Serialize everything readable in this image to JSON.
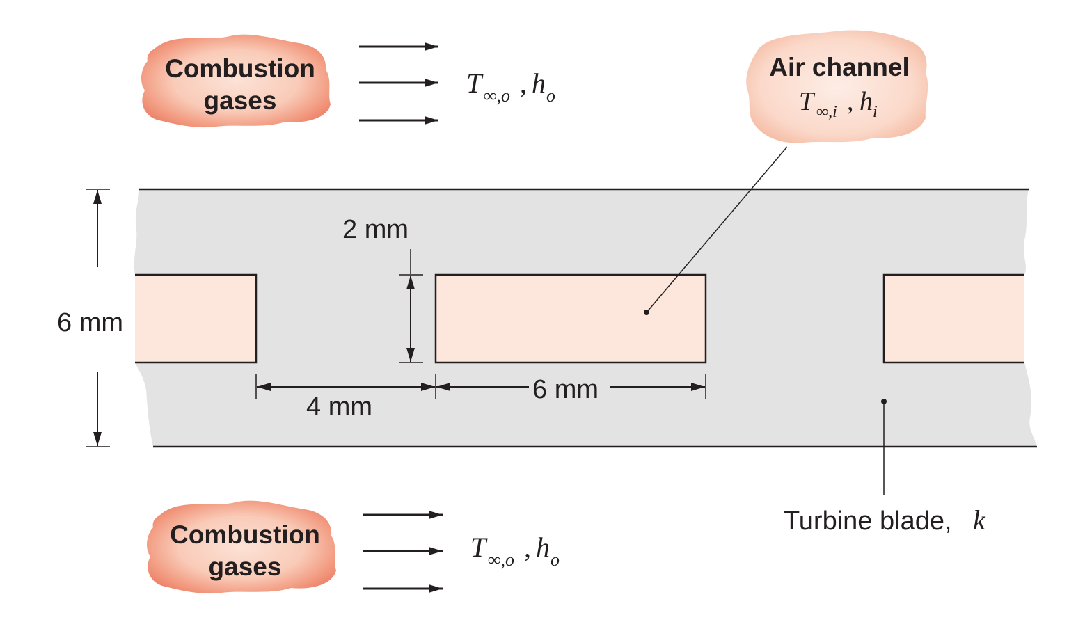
{
  "clouds": {
    "top": {
      "line1": "Combustion",
      "line2": "gases"
    },
    "bottom": {
      "line1": "Combustion",
      "line2": "gases"
    },
    "air": {
      "title": "Air channel"
    }
  },
  "symbols": {
    "T": "T",
    "inf_o": "∞,o",
    "inf_i": "∞,i",
    "h": "h",
    "sub_o": "o",
    "sub_i": "i",
    "comma": ","
  },
  "dimensions": {
    "height_total": "6 mm",
    "channel_height": "2 mm",
    "gap": "4 mm",
    "channel_width": "6 mm"
  },
  "labels": {
    "blade": "Turbine blade, ",
    "k": "k"
  },
  "colors": {
    "blade": "#e3e3e3",
    "channel": "#fde6db",
    "cloud_outer": "#ee8a72",
    "cloud_inner": "#fbd7c8",
    "air_cloud_outer": "#f6c4ae",
    "air_cloud_inner": "#fdeae0",
    "ink": "#231f20"
  }
}
